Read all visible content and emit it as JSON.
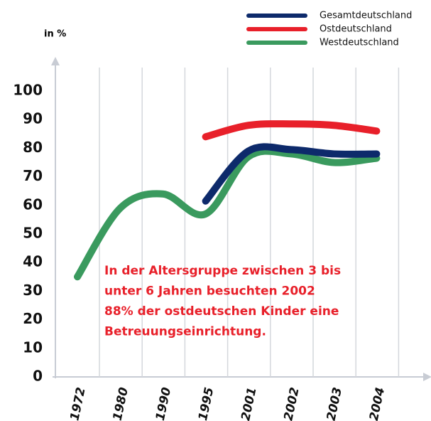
{
  "chart_data": {
    "type": "line",
    "y_axis_label": "in %",
    "categories": [
      "1972",
      "1980",
      "1990",
      "1995",
      "2001",
      "2002",
      "2003",
      "2004"
    ],
    "series": [
      {
        "name": "Gesamtdeutschland",
        "color": "#0d2a6b",
        "values": [
          null,
          null,
          null,
          61.5,
          79,
          79.5,
          78,
          78
        ]
      },
      {
        "name": "Ostdeutschland",
        "color": "#e8202a",
        "values": [
          null,
          null,
          null,
          84,
          88,
          88.5,
          88,
          86
        ]
      },
      {
        "name": "Westdeutschland",
        "color": "#3a9a5e",
        "values": [
          35,
          59,
          64,
          57,
          77,
          78,
          75,
          76.5
        ]
      }
    ],
    "ylim": [
      0,
      100
    ],
    "yticks": [
      0,
      10,
      20,
      30,
      40,
      50,
      60,
      70,
      80,
      90,
      100
    ],
    "annotation": [
      "In der Altersgruppe zwischen 3 bis",
      "unter 6 Jahren besuchten 2002",
      "88% der ostdeutschen Kinder eine",
      "Betreuungseinrichtung."
    ],
    "grid": true
  }
}
